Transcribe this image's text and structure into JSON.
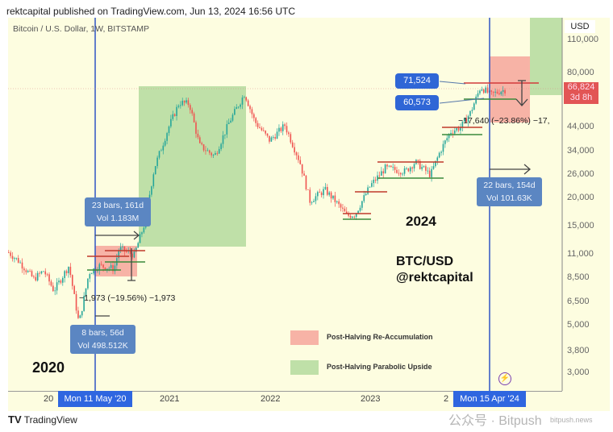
{
  "header": {
    "published": "rektcapital published on TradingView.com, Jun 13, 2024 16:56 UTC",
    "symbol": "Bitcoin / U.S. Dollar, 1W, BITSTAMP"
  },
  "colors": {
    "background": "#fdfde0",
    "up_candle": "#26a69a",
    "down_candle": "#ef5350",
    "reaccumulation": "#f7b3a6",
    "parabolic": "#bfe0a8",
    "halving_line": "#2f55c4",
    "label_blue": "#2f66e0"
  },
  "chart_data": {
    "type": "candlestick",
    "interval": "1W",
    "y_scale": "log",
    "ylim": [
      2700,
      120000
    ],
    "currency": "USD",
    "y_ticks": [
      "110,000",
      "80,000",
      "44,000",
      "34,000",
      "26,000",
      "20,000",
      "15,000",
      "11,000",
      "8,500",
      "6,500",
      "5,000",
      "3,800",
      "3,000"
    ],
    "x_ticks": [
      "2020",
      "2021",
      "2022",
      "2023",
      "2024"
    ],
    "x_tick_labels_visible": [
      "20",
      "2021",
      "2022",
      "2023",
      "2"
    ],
    "approx_close_path": [
      {
        "t": 2019.5,
        "p": 11000
      },
      {
        "t": 2019.6,
        "p": 10000
      },
      {
        "t": 2019.75,
        "p": 8200
      },
      {
        "t": 2019.85,
        "p": 9000
      },
      {
        "t": 2019.95,
        "p": 7200
      },
      {
        "t": 2020.1,
        "p": 9500
      },
      {
        "t": 2020.2,
        "p": 5000
      },
      {
        "t": 2020.3,
        "p": 8800
      },
      {
        "t": 2020.4,
        "p": 9500
      },
      {
        "t": 2020.55,
        "p": 9200
      },
      {
        "t": 2020.6,
        "p": 11500
      },
      {
        "t": 2020.75,
        "p": 10700
      },
      {
        "t": 2020.85,
        "p": 15000
      },
      {
        "t": 2020.95,
        "p": 28000
      },
      {
        "t": 2021.1,
        "p": 45000
      },
      {
        "t": 2021.2,
        "p": 58000
      },
      {
        "t": 2021.3,
        "p": 57000
      },
      {
        "t": 2021.4,
        "p": 36000
      },
      {
        "t": 2021.55,
        "p": 32000
      },
      {
        "t": 2021.7,
        "p": 47000
      },
      {
        "t": 2021.85,
        "p": 64000
      },
      {
        "t": 2021.95,
        "p": 47000
      },
      {
        "t": 2022.1,
        "p": 38000
      },
      {
        "t": 2022.25,
        "p": 45000
      },
      {
        "t": 2022.4,
        "p": 30000
      },
      {
        "t": 2022.5,
        "p": 19500
      },
      {
        "t": 2022.65,
        "p": 22000
      },
      {
        "t": 2022.75,
        "p": 19500
      },
      {
        "t": 2022.87,
        "p": 16500
      },
      {
        "t": 2022.95,
        "p": 16800
      },
      {
        "t": 2023.1,
        "p": 23000
      },
      {
        "t": 2023.25,
        "p": 28000
      },
      {
        "t": 2023.45,
        "p": 27000
      },
      {
        "t": 2023.55,
        "p": 30000
      },
      {
        "t": 2023.7,
        "p": 26000
      },
      {
        "t": 2023.8,
        "p": 34000
      },
      {
        "t": 2023.9,
        "p": 42000
      },
      {
        "t": 2024.0,
        "p": 44000
      },
      {
        "t": 2024.1,
        "p": 52000
      },
      {
        "t": 2024.2,
        "p": 69000
      },
      {
        "t": 2024.3,
        "p": 63000
      },
      {
        "t": 2024.4,
        "p": 66000
      },
      {
        "t": 2024.45,
        "p": 66824
      }
    ],
    "current_price": {
      "value": "66,824",
      "countdown": "3d 8h"
    },
    "price_labels": [
      "71,524",
      "60,573"
    ],
    "halving_markers": [
      "Mon 11 May '20",
      "Mon 15 Apr '24"
    ],
    "measurements": [
      {
        "bars": "23 bars, 161d",
        "vol": "Vol 1.183M"
      },
      {
        "bars": "8 bars, 56d",
        "vol": "Vol 498.512K"
      },
      {
        "bars": "22 bars, 154d",
        "vol": "Vol 101.63K"
      }
    ],
    "drawdowns": [
      "−1,973 (−19.56%) −1,973",
      "−17,640 (−23.86%) −17,"
    ],
    "annotations": {
      "year_left": "2020",
      "year_right": "2024",
      "pair": "BTC/USD",
      "author": "@rektcapital"
    },
    "legend": [
      {
        "name": "Post-Halving Re-Accumulation",
        "color": "#f7b3a6"
      },
      {
        "name": "Post-Halving Parabolic Upside",
        "color": "#bfe0a8"
      }
    ],
    "legend_placement": "bottom-center",
    "grid": false
  },
  "footer": {
    "logo": "TradingView"
  },
  "watermark": {
    "text": "公众号 · Bitpush",
    "sub": "bitpush.news"
  }
}
